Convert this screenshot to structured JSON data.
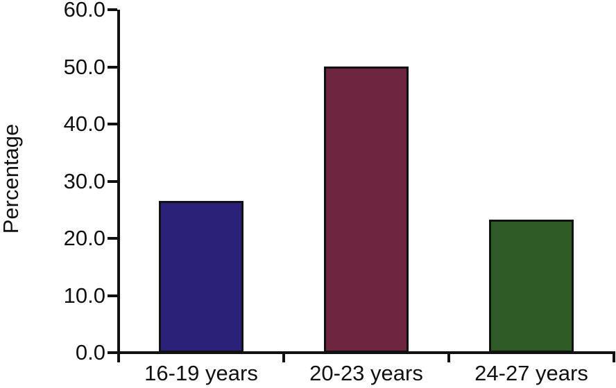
{
  "figure": {
    "background": "#ffffff"
  },
  "chart_data": {
    "type": "bar",
    "title": "",
    "categories": [
      "16-19 years",
      "20-23 years",
      "24-27 years"
    ],
    "values": [
      26.5,
      50.0,
      23.3
    ],
    "bar_colors": [
      "#2b2178",
      "#6e2540",
      "#2f5b27"
    ],
    "bar_border_color": "#111111",
    "xlabel": "",
    "ylabel": "Percentage",
    "ylim": [
      0,
      60
    ],
    "ytick_step": 10,
    "ytick_decimals": 1,
    "ytick_labels": [
      "0.0",
      "10.0",
      "20.0",
      "30.0",
      "40.0",
      "50.0",
      "60.0"
    ],
    "grid": false,
    "legend": "none",
    "axis_color": "#111111",
    "text_color": "#111111"
  }
}
